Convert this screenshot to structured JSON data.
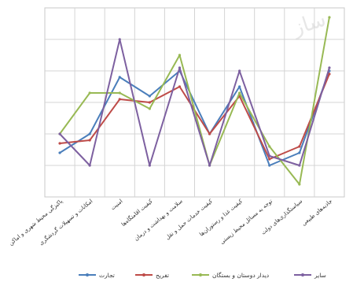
{
  "chart_data": {
    "type": "line",
    "title": "",
    "xlabel": "",
    "ylabel": "",
    "grid": true,
    "legend_position": "bottom",
    "categories": [
      "پاکیزگی محیط شهری و اماکن",
      "امکانات و تسهیلات گردشگری",
      "امنیت",
      "کیفیت اقامتگاه‌ها",
      "سلامت و بهداشت و درمان",
      "کیفیت خدمات حمل و نقل",
      "کیفیت غذا و رستوران‌ها",
      "توجه به مسائل محیط زیستی",
      "سیاستگذاری‌های دولت",
      "جاذبه‌های طبیعی"
    ],
    "ylim": [
      0,
      6
    ],
    "series": [
      {
        "name": "تجارت",
        "color": "#4a7ebb",
        "values": [
          1.4,
          2.0,
          3.8,
          3.2,
          4.0,
          2.0,
          3.5,
          1.0,
          1.4,
          4.0
        ]
      },
      {
        "name": "تفریح",
        "color": "#be4b48",
        "values": [
          1.7,
          1.8,
          3.1,
          3.0,
          3.5,
          2.0,
          3.2,
          1.2,
          1.6,
          3.9
        ]
      },
      {
        "name": "دیدار دوستان و بستگان",
        "color": "#98b954",
        "values": [
          2.0,
          3.3,
          3.3,
          2.8,
          4.5,
          1.0,
          3.3,
          1.6,
          0.4,
          5.7
        ]
      },
      {
        "name": "سایر",
        "color": "#7d60a0",
        "values": [
          2.0,
          1.0,
          5.0,
          1.0,
          4.1,
          1.0,
          4.0,
          1.3,
          1.0,
          4.1
        ]
      }
    ]
  }
}
